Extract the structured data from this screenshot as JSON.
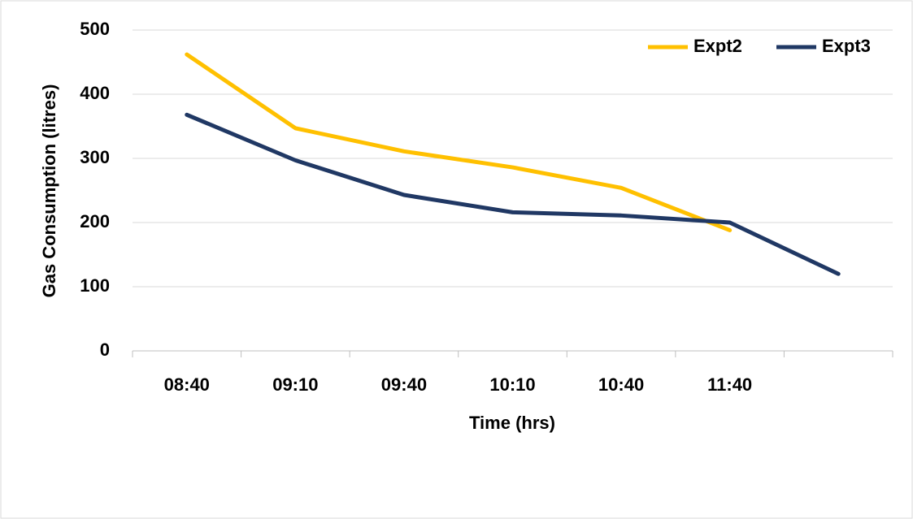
{
  "chart_data": {
    "type": "line",
    "xlabel": "Time (hrs)",
    "ylabel": "Gas Consumption (litres)",
    "categories": [
      "08:40",
      "09:10",
      "09:40",
      "10:10",
      "10:40",
      "11:40",
      null
    ],
    "series": [
      {
        "name": "Expt2",
        "color": "#ffc000",
        "values": [
          462,
          347,
          311,
          286,
          254,
          188,
          null
        ]
      },
      {
        "name": "Expt3",
        "color": "#203864",
        "values": [
          368,
          297,
          243,
          216,
          211,
          200,
          120
        ]
      }
    ],
    "ylim": [
      0,
      500
    ],
    "yticks": [
      0,
      100,
      200,
      300,
      400,
      500
    ],
    "grid": true,
    "legend": "top-right"
  }
}
